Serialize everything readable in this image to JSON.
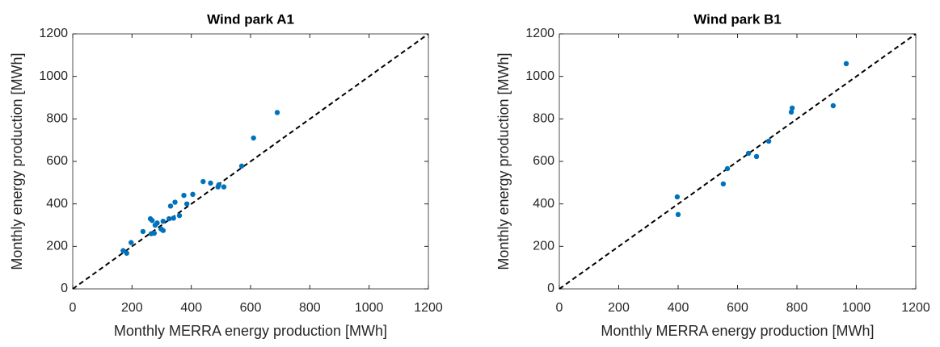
{
  "chart_data": [
    {
      "type": "scatter",
      "title": "Wind park A1",
      "x_label": "Monthly MERRA energy production [MWh]",
      "y_label": "Monthly energy production [MWh]",
      "xlim": [
        0,
        1200
      ],
      "ylim": [
        0,
        1200
      ],
      "xticks": [
        0,
        200,
        400,
        600,
        800,
        1000,
        1200
      ],
      "yticks": [
        0,
        200,
        400,
        600,
        800,
        1000,
        1200
      ],
      "reference_line": true,
      "series": [
        {
          "color": "#0072bd",
          "x": [
            170,
            182,
            197,
            237,
            262,
            268,
            265,
            275,
            278,
            285,
            298,
            305,
            305,
            325,
            330,
            340,
            345,
            360,
            375,
            385,
            405,
            440,
            465,
            490,
            493,
            510,
            570,
            610,
            690
          ],
          "values": [
            180,
            168,
            218,
            270,
            330,
            322,
            260,
            262,
            300,
            310,
            282,
            275,
            318,
            330,
            390,
            333,
            408,
            345,
            440,
            400,
            445,
            505,
            498,
            480,
            490,
            480,
            578,
            710,
            830
          ]
        }
      ]
    },
    {
      "type": "scatter",
      "title": "Wind park B1",
      "x_label": "Monthly MERRA energy production [MWh]",
      "y_label": "Monthly energy production [MWh]",
      "xlim": [
        0,
        1200
      ],
      "ylim": [
        0,
        1200
      ],
      "xticks": [
        0,
        200,
        400,
        600,
        800,
        1000,
        1200
      ],
      "yticks": [
        0,
        200,
        400,
        600,
        800,
        1000,
        1200
      ],
      "reference_line": true,
      "series": [
        {
          "color": "#0072bd",
          "x": [
            397,
            400,
            552,
            566,
            637,
            664,
            705,
            781,
            784,
            922,
            966
          ],
          "values": [
            433,
            350,
            494,
            566,
            638,
            623,
            695,
            832,
            851,
            862,
            1060
          ]
        }
      ]
    }
  ]
}
